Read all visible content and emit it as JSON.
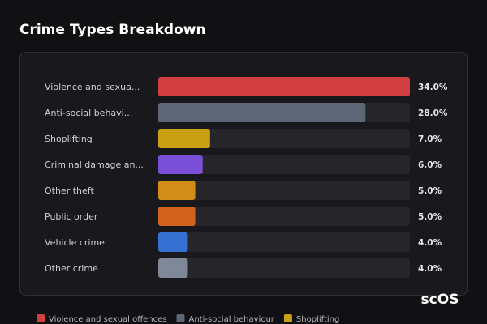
{
  "chart_data": {
    "type": "hbar",
    "title": "Crime Types Breakdown",
    "categories": [
      "Violence and sexua...",
      "Anti-social behavi...",
      "Shoplifting",
      "Criminal damage an...",
      "Other theft",
      "Public order",
      "Vehicle crime",
      "Other crime"
    ],
    "values": [
      34.0,
      28.0,
      7.0,
      6.0,
      5.0,
      5.0,
      4.0,
      4.0
    ],
    "value_labels": [
      "34.0%",
      "28.0%",
      "7.0%",
      "6.0%",
      "5.0%",
      "5.0%",
      "4.0%",
      "4.0%"
    ],
    "colors": [
      "#d23f41",
      "#5c6675",
      "#c9a013",
      "#7b50d8",
      "#d18d17",
      "#d2631c",
      "#3571d2",
      "#7e8896"
    ],
    "xlim": [
      0,
      34
    ],
    "legend": [
      {
        "name": "Violence and sexual offences",
        "color": "#d23f41"
      },
      {
        "name": "Anti-social behaviour",
        "color": "#5c6675"
      },
      {
        "name": "Shoplifting",
        "color": "#c9a013"
      }
    ]
  },
  "watermark": "scOS"
}
